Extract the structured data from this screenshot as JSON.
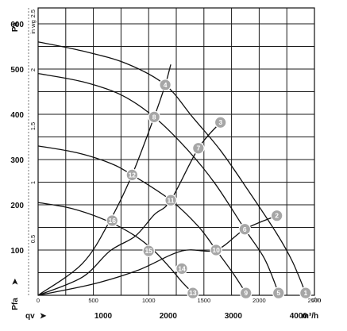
{
  "chart_data": {
    "type": "line",
    "xlabel": "qv",
    "ylabel": "Pfa",
    "x_unit_top": "cfm",
    "x_unit_bottom": "m³/h",
    "y_unit_left": "Pa",
    "y_unit_right": "in wg",
    "xlim": [
      0,
      2500
    ],
    "ylim": [
      0,
      635
    ],
    "grid": true,
    "x_ticks_cfm": [
      "0",
      "500",
      "1000",
      "1500",
      "2000",
      "2500"
    ],
    "x_ticks_cfm_values": [
      0,
      500,
      1000,
      1500,
      2000,
      2500
    ],
    "x_ticks_m3h": [
      "1000",
      "2000",
      "3000",
      "4000"
    ],
    "x_ticks_m3h_values": [
      589,
      1177,
      1766,
      2355
    ],
    "y_ticks_pa": [
      "100",
      "200",
      "300",
      "400",
      "500",
      "600"
    ],
    "y_ticks_pa_values": [
      100,
      200,
      300,
      400,
      500,
      600
    ],
    "y_ticks_inwg": [
      "0.5",
      "1",
      "1.5",
      "2",
      "2.5"
    ],
    "y_ticks_inwg_values": [
      124.5,
      249,
      373.5,
      498,
      622.5
    ],
    "series": [
      {
        "kind": "fan",
        "points": [
          [
            0,
            560
          ],
          [
            400,
            540
          ],
          [
            800,
            512
          ],
          [
            1150,
            465
          ],
          [
            1400,
            393
          ],
          [
            1650,
            320
          ],
          [
            1900,
            232
          ],
          [
            2160,
            136
          ],
          [
            2300,
            75
          ],
          [
            2420,
            5
          ]
        ]
      },
      {
        "kind": "fan",
        "points": [
          [
            0,
            490
          ],
          [
            400,
            472
          ],
          [
            750,
            443
          ],
          [
            1050,
            394
          ],
          [
            1350,
            322
          ],
          [
            1600,
            247
          ],
          [
            1870,
            146
          ],
          [
            2050,
            80
          ],
          [
            2175,
            5
          ]
        ]
      },
      {
        "kind": "fan",
        "points": [
          [
            0,
            330
          ],
          [
            350,
            315
          ],
          [
            650,
            292
          ],
          [
            850,
            266
          ],
          [
            1200,
            210
          ],
          [
            1450,
            152
          ],
          [
            1610,
            100
          ],
          [
            1760,
            50
          ],
          [
            1880,
            5
          ]
        ]
      },
      {
        "kind": "fan",
        "points": [
          [
            0,
            205
          ],
          [
            300,
            192
          ],
          [
            620,
            165
          ],
          [
            880,
            131
          ],
          [
            1050,
            98
          ],
          [
            1200,
            59
          ],
          [
            1300,
            30
          ],
          [
            1400,
            5
          ]
        ]
      },
      {
        "kind": "system",
        "points": [
          [
            0,
            0
          ],
          [
            400,
            70
          ],
          [
            650,
            165
          ],
          [
            850,
            266
          ],
          [
            1050,
            394
          ],
          [
            1150,
            465
          ],
          [
            1200,
            510
          ]
        ]
      },
      {
        "kind": "system",
        "points": [
          [
            0,
            0
          ],
          [
            400,
            40
          ],
          [
            650,
            98
          ],
          [
            880,
            131
          ],
          [
            1050,
            178
          ],
          [
            1200,
            210
          ],
          [
            1450,
            325
          ],
          [
            1650,
            382
          ]
        ]
      },
      {
        "kind": "system",
        "points": [
          [
            0,
            0
          ],
          [
            500,
            25
          ],
          [
            900,
            55
          ],
          [
            1300,
            98
          ],
          [
            1610,
            100
          ],
          [
            1870,
            146
          ],
          [
            2160,
            176
          ]
        ]
      }
    ],
    "markers": [
      {
        "id": "1",
        "x": 2420,
        "y": 5
      },
      {
        "id": "2",
        "x": 2160,
        "y": 176
      },
      {
        "id": "3",
        "x": 1650,
        "y": 382
      },
      {
        "id": "4",
        "x": 1150,
        "y": 465
      },
      {
        "id": "5",
        "x": 2175,
        "y": 5
      },
      {
        "id": "6",
        "x": 1870,
        "y": 146
      },
      {
        "id": "7",
        "x": 1450,
        "y": 325
      },
      {
        "id": "8",
        "x": 1050,
        "y": 394
      },
      {
        "id": "9",
        "x": 1880,
        "y": 5
      },
      {
        "id": "10",
        "x": 1610,
        "y": 100
      },
      {
        "id": "11",
        "x": 1200,
        "y": 210
      },
      {
        "id": "12",
        "x": 850,
        "y": 266
      },
      {
        "id": "13",
        "x": 1400,
        "y": 5
      },
      {
        "id": "14",
        "x": 1300,
        "y": 59
      },
      {
        "id": "15",
        "x": 1000,
        "y": 98
      },
      {
        "id": "16",
        "x": 670,
        "y": 165
      }
    ],
    "colors": {
      "line": "#111111",
      "marker_fill": "#a6a6a6",
      "marker_stroke": "#ffffff",
      "grid": "#1a1a1a"
    }
  }
}
